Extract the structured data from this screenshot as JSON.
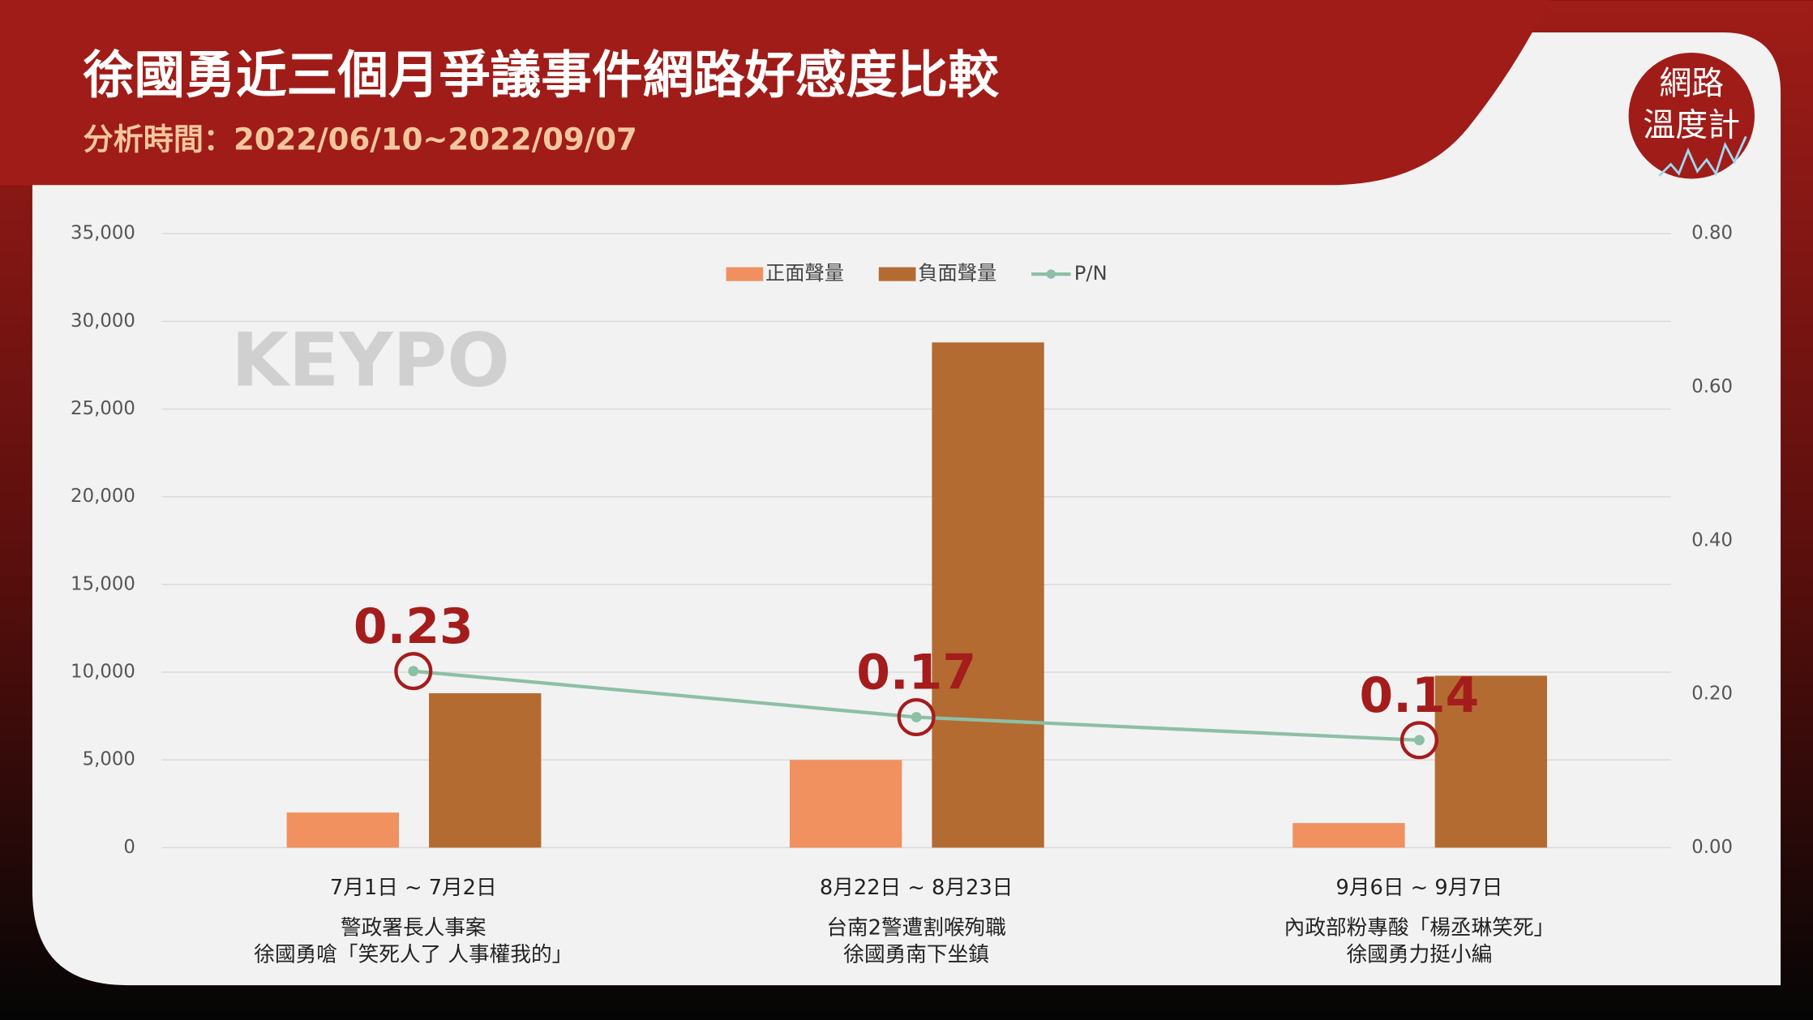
{
  "header": {
    "title": "徐國勇近三個月爭議事件網路好感度比較",
    "subtitle": "分析時間：2022/06/10~2022/09/07",
    "logo": [
      "網路",
      "溫度計"
    ],
    "watermark": "KEYPO"
  },
  "chart_data": {
    "type": "bar",
    "categories": [
      [
        "7月1日 ~ 7月2日",
        "警政署長人事案",
        "徐國勇嗆「笑死人了 人事權我的」"
      ],
      [
        "8月22日 ~ 8月23日",
        "台南2警遭割喉殉職",
        "徐國勇南下坐鎮"
      ],
      [
        "9月6日 ~ 9月7日",
        "內政部粉專酸「楊丞琳笑死」",
        "徐國勇力挺小編"
      ]
    ],
    "series": [
      {
        "name": "正面聲量",
        "color": "#f0915f",
        "values": [
          2000,
          5000,
          1400
        ]
      },
      {
        "name": "負面聲量",
        "color": "#b36b32",
        "values": [
          8800,
          28800,
          9800
        ]
      },
      {
        "name": "P/N",
        "color": "#8dbfa6",
        "axis": "y2",
        "type": "line",
        "values": [
          0.23,
          0.17,
          0.14
        ],
        "label_color": "#a51c1c"
      }
    ],
    "ylim": [
      0,
      35000
    ],
    "yticks": [
      0,
      {
        "value": 5000,
        "label": "5,000"
      },
      {
        "value": 10000,
        "label": "10,000"
      },
      {
        "value": 15000,
        "label": "15,000"
      },
      {
        "value": 20000,
        "label": "20,000"
      },
      {
        "value": 25000,
        "label": "25,000"
      },
      {
        "value": 30000,
        "label": "30,000"
      },
      {
        "value": 35000,
        "label": "35,000"
      }
    ],
    "y2lim": [
      0,
      0.8
    ],
    "y2ticks": [
      {
        "value": 0,
        "label": "0.00"
      },
      {
        "value": 0.2,
        "label": "0.20"
      },
      {
        "value": 0.4,
        "label": "0.40"
      },
      {
        "value": 0.6,
        "label": "0.60"
      },
      {
        "value": 0.8,
        "label": "0.80"
      }
    ],
    "grid": true,
    "legend": "top"
  }
}
